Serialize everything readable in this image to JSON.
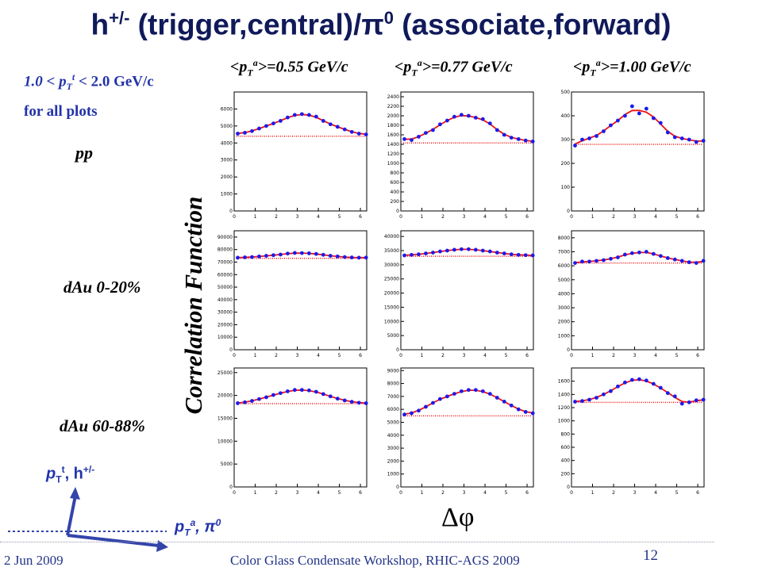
{
  "slide": {
    "title_main": "h",
    "title_sup": "+/-",
    "title_rest": " (trigger,central)/π",
    "title_sup2": "0",
    "title_end": " (associate,forward)",
    "ptt_range": "1.0 < p",
    "ptt_range_sub": "T",
    "ptt_range_sup": "t",
    "ptt_range_end": " < 2.0 GeV/c",
    "all_plots": "for all plots",
    "row_labels": [
      "pp",
      "dAu 0-20%",
      "dAu 60-88%"
    ],
    "y_axis_label": "Correlation Function",
    "x_axis_label": "Δφ",
    "col_labels": [
      {
        "pre": "<p",
        "sub": "T",
        "sup": "a",
        "post": ">=0.55 GeV/c"
      },
      {
        "pre": "<p",
        "sub": "T",
        "sup": "a",
        "post": ">=0.77 GeV/c"
      },
      {
        "pre": "<p",
        "sub": "T",
        "sup": "a",
        "post": ">=1.00 GeV/c"
      }
    ],
    "axis_arrow_up": "p",
    "axis_arrow_up_sub": "T",
    "axis_arrow_up_sup": "t",
    "axis_arrow_up_end": ", h",
    "axis_arrow_up_end_sup": "+/-",
    "axis_arrow_right": "p",
    "axis_arrow_right_sub": "T",
    "axis_arrow_right_sup": "a",
    "axis_arrow_right_end": ", π",
    "axis_arrow_right_end_sup": "0",
    "footer_left": "2 Jun 2009",
    "footer_center": "Color Glass Condensate Workshop, RHIC-AGS 2009",
    "page_number": "12",
    "colors": {
      "title": "#101a5a",
      "data": "#1a1aee",
      "fit": "#ee1111",
      "baseline": "#ee1111"
    }
  },
  "chart_data": [
    {
      "type": "scatter",
      "row": "pp",
      "col": "<pTa>=0.55 GeV/c",
      "ylim": [
        0,
        7000
      ],
      "yticks": [
        0,
        1000,
        2000,
        3000,
        4000,
        5000,
        6000
      ],
      "xticks": [
        0,
        1,
        2,
        3,
        4,
        5,
        6
      ],
      "baseline": 4400,
      "values": [
        4550,
        4600,
        4700,
        4850,
        5000,
        5150,
        5300,
        5500,
        5650,
        5700,
        5650,
        5550,
        5300,
        5100,
        4950,
        4800,
        4650,
        4550,
        4500
      ]
    },
    {
      "type": "scatter",
      "row": "pp",
      "col": "<pTa>=0.77 GeV/c",
      "ylim": [
        0,
        2500
      ],
      "yticks": [
        0,
        200,
        400,
        600,
        800,
        1000,
        1200,
        1400,
        1600,
        1800,
        2000,
        2200,
        2400
      ],
      "xticks": [
        0,
        1,
        2,
        3,
        4,
        5,
        6
      ],
      "baseline": 1430,
      "values": [
        1510,
        1490,
        1560,
        1640,
        1700,
        1820,
        1900,
        1980,
        2020,
        2000,
        1960,
        1930,
        1840,
        1700,
        1600,
        1540,
        1510,
        1480,
        1460
      ]
    },
    {
      "type": "scatter",
      "row": "pp",
      "col": "<pTa>=1.00 GeV/c",
      "ylim": [
        0,
        500
      ],
      "yticks": [
        0,
        100,
        200,
        300,
        400,
        500
      ],
      "xticks": [
        0,
        1,
        2,
        3,
        4,
        5,
        6
      ],
      "baseline": 280,
      "values": [
        275,
        300,
        305,
        315,
        335,
        360,
        380,
        400,
        440,
        410,
        430,
        390,
        370,
        330,
        310,
        305,
        300,
        290,
        295
      ]
    },
    {
      "type": "scatter",
      "row": "dAu 0-20%",
      "col": "<pTa>=0.55 GeV/c",
      "ylim": [
        0,
        95000
      ],
      "yticks": [
        0,
        10000,
        20000,
        30000,
        40000,
        50000,
        60000,
        70000,
        80000,
        90000
      ],
      "xticks": [
        0,
        1,
        2,
        3,
        4,
        5,
        6
      ],
      "baseline": 73000,
      "values": [
        73500,
        73800,
        74000,
        74500,
        75000,
        75500,
        76000,
        76800,
        77300,
        77200,
        77000,
        76500,
        75800,
        75000,
        74500,
        74000,
        73700,
        73500,
        73600
      ]
    },
    {
      "type": "scatter",
      "row": "dAu 0-20%",
      "col": "<pTa>=0.77 GeV/c",
      "ylim": [
        0,
        42000
      ],
      "yticks": [
        0,
        5000,
        10000,
        15000,
        20000,
        25000,
        30000,
        35000,
        40000
      ],
      "xticks": [
        0,
        1,
        2,
        3,
        4,
        5,
        6
      ],
      "baseline": 33000,
      "values": [
        33300,
        33500,
        33700,
        34000,
        34300,
        34700,
        35000,
        35300,
        35500,
        35500,
        35300,
        35000,
        34700,
        34300,
        34000,
        33700,
        33500,
        33400,
        33300
      ]
    },
    {
      "type": "scatter",
      "row": "dAu 0-20%",
      "col": "<pTa>=1.00 GeV/c",
      "ylim": [
        0,
        8500
      ],
      "yticks": [
        0,
        1000,
        2000,
        3000,
        4000,
        5000,
        6000,
        7000,
        8000
      ],
      "xticks": [
        0,
        1,
        2,
        3,
        4,
        5,
        6
      ],
      "baseline": 6200,
      "values": [
        6200,
        6300,
        6300,
        6350,
        6400,
        6500,
        6600,
        6800,
        6900,
        6950,
        7000,
        6850,
        6700,
        6550,
        6450,
        6350,
        6250,
        6200,
        6350
      ]
    },
    {
      "type": "scatter",
      "row": "dAu 60-88%",
      "col": "<pTa>=0.55 GeV/c",
      "ylim": [
        0,
        26000
      ],
      "yticks": [
        0,
        5000,
        10000,
        15000,
        20000,
        25000
      ],
      "xticks": [
        0,
        1,
        2,
        3,
        4,
        5,
        6
      ],
      "baseline": 18200,
      "values": [
        18300,
        18500,
        18800,
        19200,
        19600,
        20100,
        20500,
        20900,
        21200,
        21200,
        21100,
        20800,
        20300,
        19800,
        19300,
        18900,
        18600,
        18400,
        18300
      ]
    },
    {
      "type": "scatter",
      "row": "dAu 60-88%",
      "col": "<pTa>=0.77 GeV/c",
      "ylim": [
        0,
        9200
      ],
      "yticks": [
        0,
        1000,
        2000,
        3000,
        4000,
        5000,
        6000,
        7000,
        8000,
        9000
      ],
      "xticks": [
        0,
        1,
        2,
        3,
        4,
        5,
        6
      ],
      "baseline": 5500,
      "values": [
        5600,
        5700,
        5900,
        6200,
        6500,
        6800,
        7000,
        7200,
        7400,
        7500,
        7500,
        7400,
        7200,
        6900,
        6600,
        6300,
        6000,
        5800,
        5700
      ]
    },
    {
      "type": "scatter",
      "row": "dAu 60-88%",
      "col": "<pTa>=1.00 GeV/c",
      "ylim": [
        0,
        1800
      ],
      "yticks": [
        0,
        200,
        400,
        600,
        800,
        1000,
        1200,
        1400,
        1600
      ],
      "xticks": [
        0,
        1,
        2,
        3,
        4,
        5,
        6
      ],
      "baseline": 1280,
      "values": [
        1290,
        1300,
        1320,
        1350,
        1400,
        1450,
        1520,
        1580,
        1620,
        1630,
        1610,
        1560,
        1500,
        1420,
        1370,
        1260,
        1280,
        1310,
        1320
      ]
    }
  ]
}
